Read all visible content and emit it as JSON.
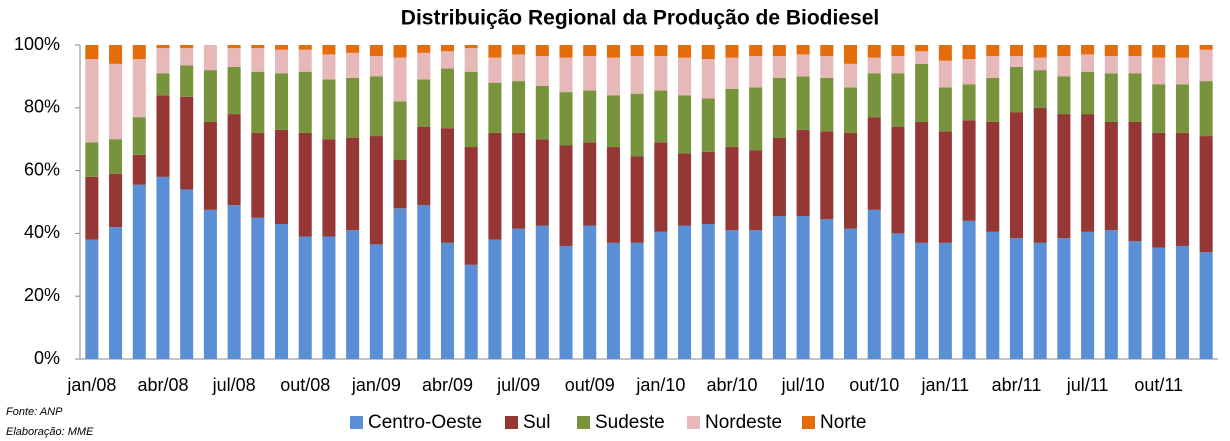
{
  "chart_data": {
    "type": "stacked_bar",
    "title": "Distribuição Regional da Produção de Biodiesel",
    "footnotes": [
      "Fonte: ANP",
      "Elaboração: MME"
    ],
    "categories": [
      "jan/08",
      null,
      null,
      "abr/08",
      null,
      null,
      "jul/08",
      null,
      null,
      "out/08",
      null,
      null,
      "jan/09",
      null,
      null,
      "abr/09",
      null,
      null,
      "jul/09",
      null,
      null,
      "out/09",
      null,
      null,
      "jan/10",
      null,
      null,
      "abr/10",
      null,
      null,
      "jul/10",
      null,
      null,
      "out/10",
      null,
      null,
      "jan/11",
      null,
      null,
      "abr/11",
      null,
      null,
      "jul/11",
      null,
      null,
      "out/11",
      null,
      null
    ],
    "ylim": [
      0,
      100
    ],
    "yticks": [
      {
        "value": 0,
        "label": "0%"
      },
      {
        "value": 20,
        "label": "20%"
      },
      {
        "value": 40,
        "label": "40%"
      },
      {
        "value": 60,
        "label": "60%"
      },
      {
        "value": 80,
        "label": "80%"
      },
      {
        "value": 100,
        "label": "100%"
      }
    ],
    "legend": "bottom",
    "series": [
      {
        "name": "Centro-Oeste",
        "color": "#5a8fd6",
        "values": [
          38,
          42,
          55.5,
          58,
          54,
          47.5,
          49,
          45,
          43,
          39,
          39,
          41,
          36.5,
          48,
          49,
          37,
          30,
          38,
          41.5,
          42.5,
          36,
          42.5,
          37,
          37,
          40.5,
          42.5,
          43,
          41,
          41,
          45.5,
          45.5,
          44.5,
          41.5,
          47.5,
          40,
          37,
          37,
          44,
          40.5,
          38.5,
          37,
          38.5,
          40.5,
          41,
          37.5,
          35.5,
          36,
          34
        ]
      },
      {
        "name": "Sul",
        "color": "#953735",
        "values": [
          20,
          17,
          9.5,
          26,
          29.5,
          28,
          29,
          27,
          30,
          33,
          31,
          29.5,
          34.5,
          15.5,
          25,
          36.5,
          37.5,
          34,
          30.5,
          27.5,
          32,
          26.5,
          30.5,
          27.5,
          28.5,
          23,
          23,
          26.5,
          25.5,
          25,
          27.5,
          28,
          30.5,
          29.5,
          34,
          38.5,
          35.5,
          32,
          35,
          40,
          43,
          39.5,
          37.5,
          34.5,
          38,
          36.5,
          36,
          37
        ]
      },
      {
        "name": "Sudeste",
        "color": "#77933c",
        "values": [
          11,
          11,
          12,
          7,
          10,
          16.5,
          15,
          19.5,
          18,
          19.5,
          19,
          19,
          19,
          18.5,
          15,
          19,
          24,
          16,
          16.5,
          17,
          17,
          16.5,
          16.5,
          20,
          16.5,
          18.5,
          17,
          18.5,
          20,
          19,
          17,
          17,
          14.5,
          14,
          17,
          18.5,
          14,
          11.5,
          14,
          14.5,
          12,
          12,
          13.5,
          15.5,
          15.5,
          15.5,
          15.5,
          17.5
        ]
      },
      {
        "name": "Nordeste",
        "color": "#e6b9b8",
        "values": [
          26.5,
          24,
          18.5,
          8,
          5.5,
          8,
          6,
          7.5,
          7.5,
          7,
          8,
          8,
          6.5,
          14,
          8.5,
          5.5,
          7.5,
          8,
          8.5,
          9.5,
          11,
          11,
          12,
          12,
          11,
          12,
          12.5,
          10,
          10,
          7,
          7,
          7,
          7.5,
          5,
          5.5,
          4,
          8.5,
          8,
          7,
          3.5,
          4,
          6.5,
          5.5,
          5.5,
          5.5,
          8.5,
          8.5,
          10
        ]
      },
      {
        "name": "Norte",
        "color": "#e46c0a",
        "values": [
          4.5,
          6,
          4.5,
          1,
          1,
          0,
          1,
          1,
          1.5,
          1.5,
          3,
          2.5,
          3.5,
          4,
          2.5,
          2,
          1,
          4,
          3,
          3.5,
          4,
          3.5,
          4,
          3.5,
          3.5,
          4,
          4.5,
          4,
          3.5,
          3.5,
          3,
          3.5,
          6,
          4,
          3.5,
          2,
          5,
          4.5,
          3.5,
          3.5,
          4,
          3.5,
          3,
          3.5,
          3.5,
          4,
          4,
          1.5
        ]
      }
    ]
  }
}
